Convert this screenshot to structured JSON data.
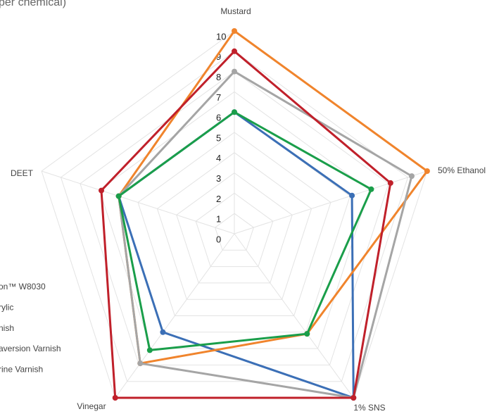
{
  "chart_data": {
    "type": "radar",
    "title": "per chemical)",
    "categories": [
      "Mustard",
      "50% Ethanol",
      "1% SNS",
      "Vinegar",
      "DEET"
    ],
    "series": [
      {
        "name": "on™ W8030",
        "color": "#3b6fb6",
        "values": [
          6.0,
          6.1,
          10,
          6.0,
          6.0
        ]
      },
      {
        "name": "rylic",
        "color": "#f0842c",
        "values": [
          10,
          10,
          6.1,
          7.9,
          6.0
        ]
      },
      {
        "name": "nish",
        "color": "#a5a5a5",
        "values": [
          8.0,
          9.2,
          10,
          7.9,
          6.0
        ]
      },
      {
        "name": "aversion Varnish",
        "color": "#1a9e4a",
        "values": [
          6.0,
          7.1,
          6.1,
          7.1,
          6.0
        ]
      },
      {
        "name": "rine Varnish",
        "color": "#c0202a",
        "values": [
          9.0,
          8.1,
          10,
          10,
          6.9
        ]
      }
    ],
    "ylim": [
      0,
      10
    ],
    "yticks": [
      0,
      1,
      2,
      3,
      4,
      5,
      6,
      7,
      8,
      9,
      10
    ],
    "grid": true
  }
}
